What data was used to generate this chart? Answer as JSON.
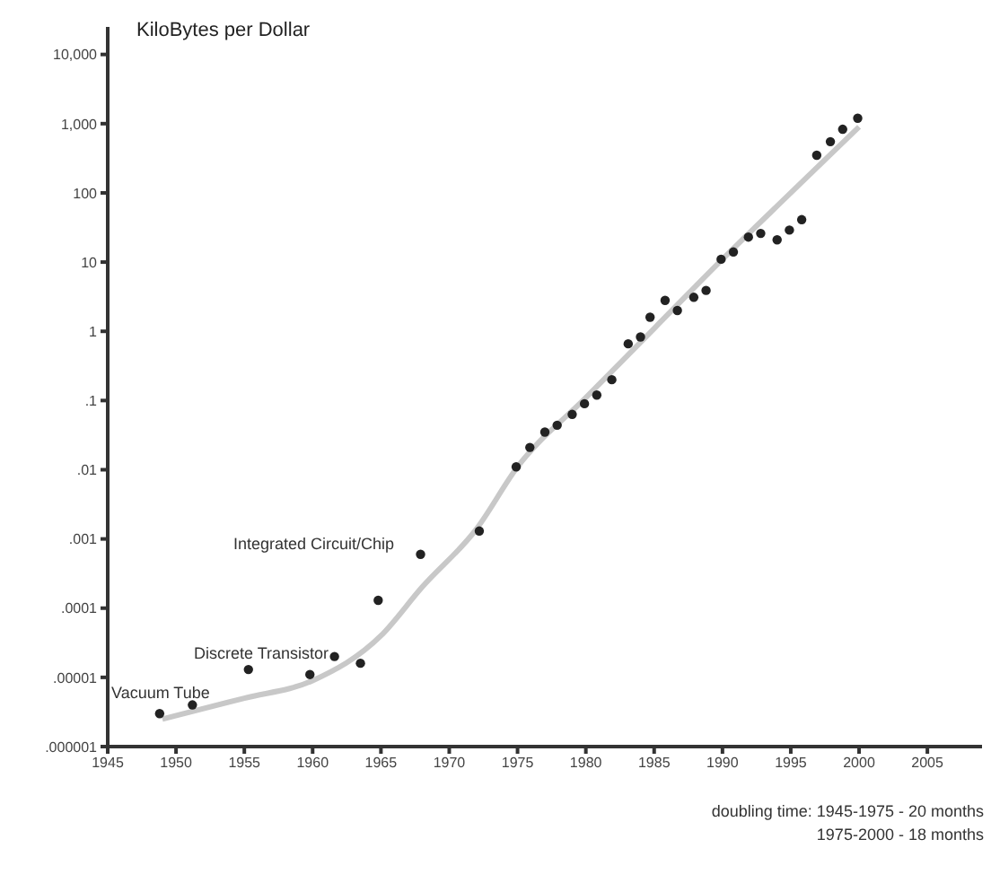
{
  "chart_data": {
    "type": "scatter",
    "ylabel": "KiloBytes per Dollar",
    "log": "y",
    "xlim": [
      1945,
      2009
    ],
    "xticks": [
      1945,
      1950,
      1955,
      1960,
      1965,
      1970,
      1975,
      1980,
      1985,
      1990,
      1995,
      2000,
      2005
    ],
    "ylim": [
      1e-06,
      25000
    ],
    "yticks": [
      {
        "value": 1e-06,
        "label": ".000001"
      },
      {
        "value": 1e-05,
        "label": ".00001"
      },
      {
        "value": 0.0001,
        "label": ".0001"
      },
      {
        "value": 0.001,
        "label": ".001"
      },
      {
        "value": 0.01,
        "label": ".01"
      },
      {
        "value": 0.1,
        "label": ".1"
      },
      1,
      10,
      100,
      {
        "value": 1000,
        "label": "1,000"
      },
      {
        "value": 10000,
        "label": "10,000"
      }
    ],
    "grid": false,
    "series": [
      {
        "type": "line",
        "color": "#c8c8c8",
        "x": [
          1949,
          1955,
          1960,
          1965,
          1968,
          1972,
          1975,
          1980,
          1985,
          1990,
          1995,
          2000
        ],
        "values": [
          2.5e-06,
          5e-06,
          9e-06,
          4e-05,
          0.0002,
          0.0014,
          0.011,
          0.11,
          1.1,
          11,
          100,
          900
        ]
      },
      {
        "marker": "circle",
        "color": "#222222",
        "x": [
          1948.8,
          1951.2,
          1955.3,
          1959.8,
          1961.6,
          1963.5,
          1964.8,
          1967.9,
          1972.2,
          1974.9,
          1975.9,
          1977.0,
          1977.9,
          1979.0,
          1979.9,
          1980.8,
          1981.9,
          1983.1,
          1984.0,
          1984.7,
          1985.8,
          1986.7,
          1987.9,
          1988.8,
          1989.9,
          1990.8,
          1991.9,
          1992.8,
          1994.0,
          1994.9,
          1995.8,
          1996.9,
          1997.9,
          1998.8,
          1999.9
        ],
        "values": [
          3e-06,
          4e-06,
          1.3e-05,
          1.1e-05,
          2e-05,
          1.6e-05,
          0.00013,
          0.0006,
          0.0013,
          0.011,
          0.021,
          0.035,
          0.044,
          0.063,
          0.09,
          0.12,
          0.2,
          0.66,
          0.83,
          1.6,
          2.8,
          2,
          3.1,
          3.9,
          11,
          14,
          23,
          26,
          21,
          29,
          41,
          350,
          550,
          830,
          1200
        ]
      }
    ],
    "annotations": [
      "Vacuum Tube",
      "Discrete Transistor",
      "Integrated Circuit/Chip",
      "doubling time: 1945-1975 - 20 months",
      "1975-2000 - 18 months"
    ]
  }
}
